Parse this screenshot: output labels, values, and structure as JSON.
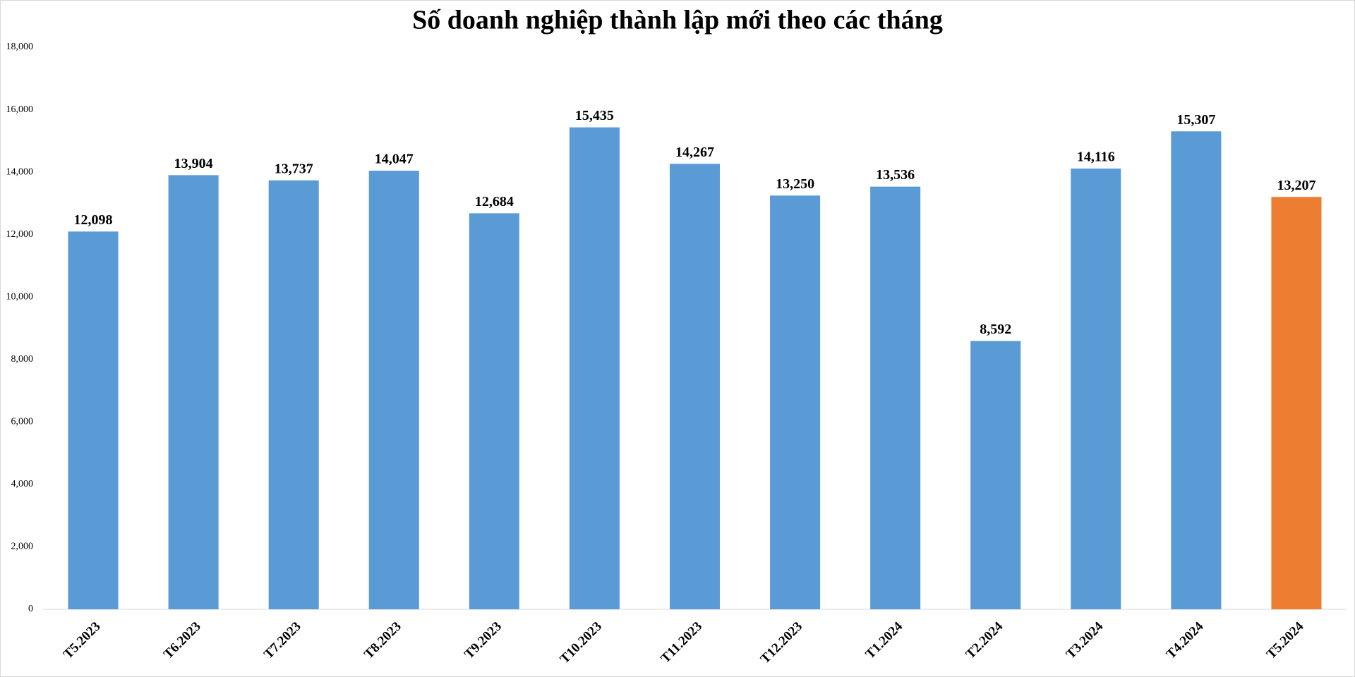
{
  "chart_data": {
    "type": "bar",
    "title": "Số doanh nghiệp thành lập mới theo các tháng",
    "categories": [
      "T5.2023",
      "T6.2023",
      "T7.2023",
      "T8.2023",
      "T9.2023",
      "T10.2023",
      "T11.2023",
      "T12.2023",
      "T1.2024",
      "T2.2024",
      "T3.2024",
      "T4.2024",
      "T5.2024"
    ],
    "values": [
      12098,
      13904,
      13737,
      14047,
      12684,
      15435,
      14267,
      13250,
      13536,
      8592,
      14116,
      15307,
      13207
    ],
    "value_labels": [
      "12,098",
      "13,904",
      "13,737",
      "14,047",
      "12,684",
      "15,435",
      "14,267",
      "13,250",
      "13,536",
      "8,592",
      "14,116",
      "15,307",
      "13,207"
    ],
    "colors": [
      "#5b9bd5",
      "#5b9bd5",
      "#5b9bd5",
      "#5b9bd5",
      "#5b9bd5",
      "#5b9bd5",
      "#5b9bd5",
      "#5b9bd5",
      "#5b9bd5",
      "#5b9bd5",
      "#5b9bd5",
      "#5b9bd5",
      "#ed7d31"
    ],
    "ylim": [
      0,
      18000
    ],
    "yticks": [
      0,
      {
        "value": 2000,
        "label": "2,000"
      },
      {
        "value": 4000,
        "label": "4,000"
      },
      {
        "value": 6000,
        "label": "6,000"
      },
      {
        "value": 8000,
        "label": "8,000"
      },
      {
        "value": 10000,
        "label": "10,000"
      },
      {
        "value": 12000,
        "label": "12,000"
      },
      {
        "value": 14000,
        "label": "14,000"
      },
      {
        "value": 16000,
        "label": "16,000"
      },
      {
        "value": 18000,
        "label": "18,000"
      }
    ],
    "grid": false
  }
}
